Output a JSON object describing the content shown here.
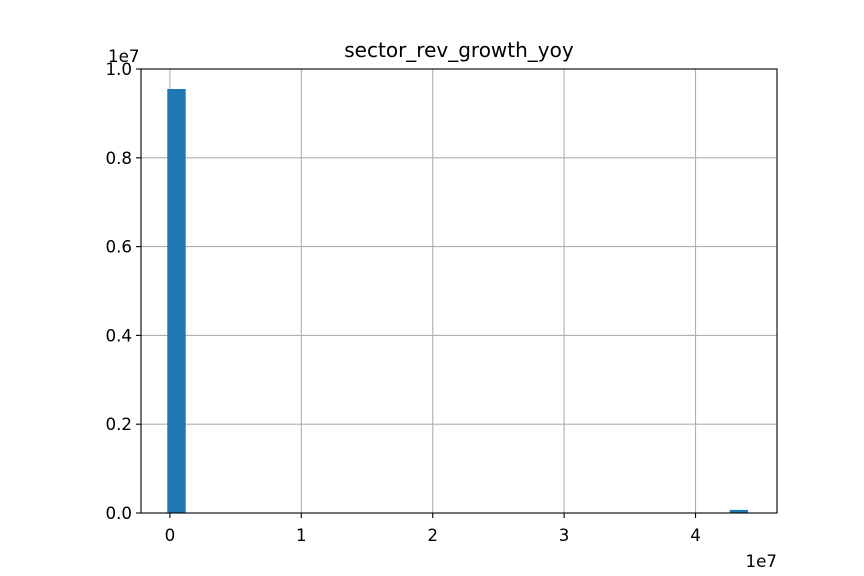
{
  "chart_data": {
    "type": "bar",
    "title": "sector_rev_growth_yoy",
    "xlabel": "",
    "ylabel": "",
    "x_offset_label": "1e7",
    "y_offset_label": "1e7",
    "xlim": [
      -0.22,
      4.62
    ],
    "ylim": [
      0,
      1.0
    ],
    "x_ticks": [
      0,
      1,
      2,
      3,
      4
    ],
    "x_tick_labels": [
      "0",
      "1",
      "2",
      "3",
      "4"
    ],
    "y_ticks": [
      0.0,
      0.2,
      0.4,
      0.6,
      0.8,
      1.0
    ],
    "y_tick_labels": [
      "0.0",
      "0.2",
      "0.4",
      "0.6",
      "0.8",
      "1.0"
    ],
    "grid": true,
    "bar_color": "#1f77b4",
    "bins": [
      {
        "x0": -0.02,
        "x1": 0.12,
        "value": 0.955
      },
      {
        "x0": 4.26,
        "x1": 4.4,
        "value": 0.007
      }
    ]
  }
}
